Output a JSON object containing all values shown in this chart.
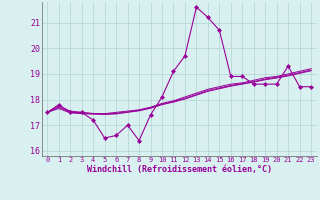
{
  "x": [
    0,
    1,
    2,
    3,
    4,
    5,
    6,
    7,
    8,
    9,
    10,
    11,
    12,
    13,
    14,
    15,
    16,
    17,
    18,
    19,
    20,
    21,
    22,
    23
  ],
  "windchill": [
    17.5,
    17.8,
    17.5,
    17.5,
    17.2,
    16.5,
    16.6,
    17.0,
    16.4,
    17.4,
    18.1,
    19.1,
    19.7,
    21.6,
    21.2,
    20.7,
    18.9,
    18.9,
    18.6,
    18.6,
    18.6,
    19.3,
    18.5,
    18.5
  ],
  "line2": [
    17.5,
    17.75,
    17.55,
    17.5,
    17.45,
    17.45,
    17.5,
    17.55,
    17.6,
    17.7,
    17.85,
    17.95,
    18.1,
    18.25,
    18.4,
    18.5,
    18.6,
    18.65,
    18.75,
    18.85,
    18.9,
    19.0,
    19.1,
    19.2
  ],
  "line3": [
    17.5,
    17.7,
    17.5,
    17.48,
    17.46,
    17.44,
    17.46,
    17.52,
    17.58,
    17.68,
    17.82,
    17.92,
    18.05,
    18.2,
    18.35,
    18.45,
    18.55,
    18.62,
    18.7,
    18.8,
    18.87,
    18.95,
    19.05,
    19.15
  ],
  "line4": [
    17.5,
    17.65,
    17.48,
    17.45,
    17.43,
    17.42,
    17.44,
    17.5,
    17.56,
    17.66,
    17.8,
    17.9,
    18.02,
    18.17,
    18.32,
    18.42,
    18.52,
    18.6,
    18.68,
    18.77,
    18.84,
    18.92,
    19.02,
    19.12
  ],
  "line_color": "#990099",
  "bg_color": "#d8f0f0",
  "grid_color": "#b8d8d8",
  "axis_color": "#990099",
  "xlabel": "Windchill (Refroidissement éolien,°C)",
  "ylim": [
    15.8,
    21.8
  ],
  "xlim": [
    -0.5,
    23.5
  ],
  "yticks": [
    16,
    17,
    18,
    19,
    20,
    21
  ],
  "xticks": [
    0,
    1,
    2,
    3,
    4,
    5,
    6,
    7,
    8,
    9,
    10,
    11,
    12,
    13,
    14,
    15,
    16,
    17,
    18,
    19,
    20,
    21,
    22,
    23
  ]
}
